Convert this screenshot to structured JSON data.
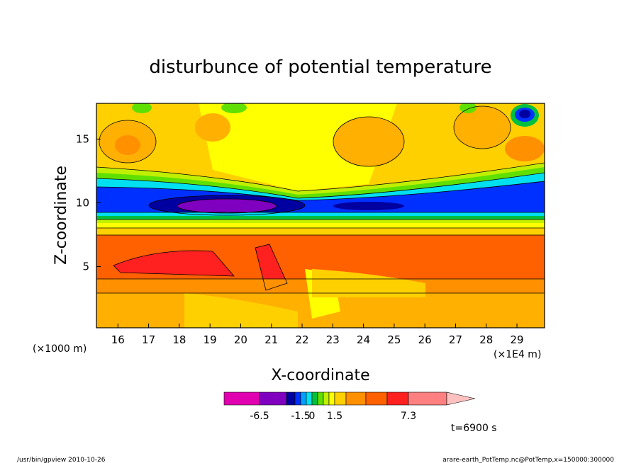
{
  "chart_data": {
    "type": "heatmap",
    "title": "disturbunce of potential temperature",
    "xlabel": "X-coordinate",
    "ylabel": "Z-coordinate",
    "x_unit_left": "(×1000 m)",
    "x_unit_right": "(×1E4 m)",
    "xlim": [
      15.3,
      29.9
    ],
    "ylim": [
      0.2,
      17.8
    ],
    "xticks": [
      16,
      17,
      18,
      19,
      20,
      21,
      22,
      23,
      24,
      25,
      26,
      27,
      28,
      29
    ],
    "yticks": [
      5,
      10,
      15
    ],
    "colorbar": {
      "min_label": "-6.5",
      "labels": [
        "-6.5",
        "-1.5",
        "0",
        "1.5",
        "7.3"
      ],
      "colors": [
        "#e000b0",
        "#8000c0",
        "#0000a0",
        "#0030ff",
        "#00a0ff",
        "#00e0f0",
        "#00c040",
        "#60e000",
        "#c0f000",
        "#ffff00",
        "#ffd000",
        "#ff9000",
        "#ff6000",
        "#ff2020",
        "#ff8080",
        "#ffc0c0"
      ]
    },
    "time_label": "t=6900 s"
  },
  "footer": {
    "left": "/usr/bin/gpview   2010-10-26",
    "right": "arare-earth_PotTemp.nc@PotTemp,x=150000:300000"
  }
}
